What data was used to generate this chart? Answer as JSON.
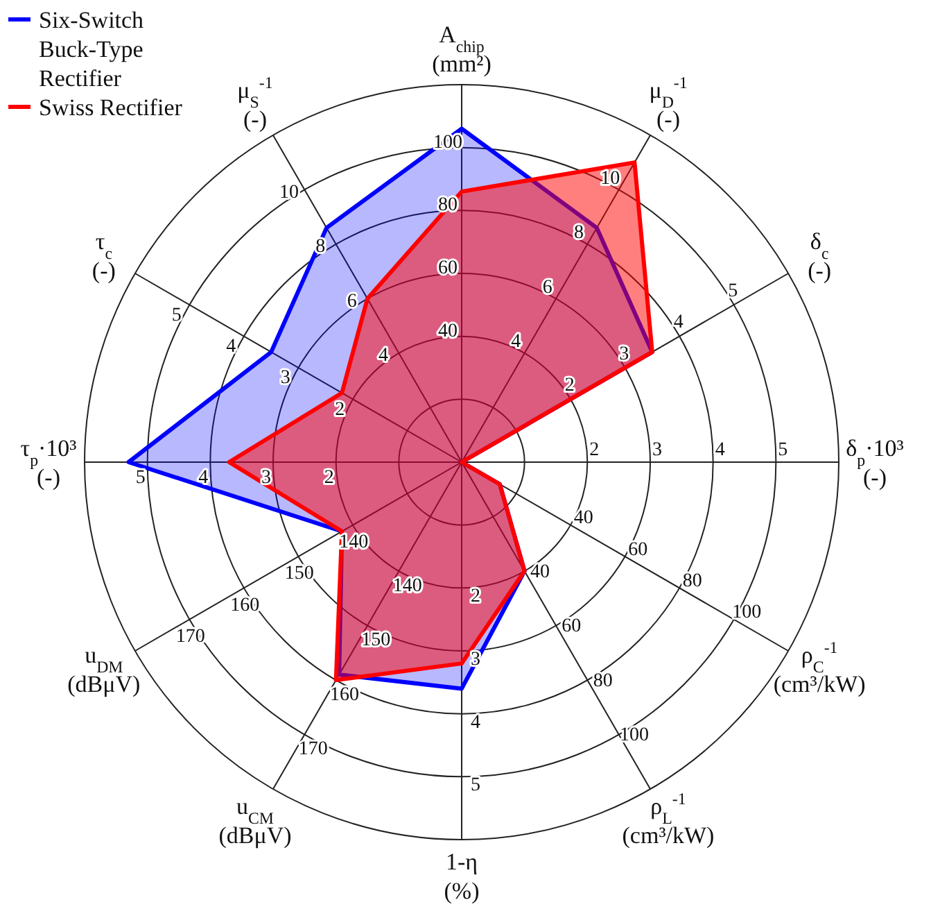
{
  "chart_data": {
    "type": "radar",
    "categories": [
      "A$_{chip}$\n(mm²)",
      "μ$_{D}$$^{-1}$\n(-)",
      "δ$_{c}$\n(-)",
      "δ$_{p}$·10³\n(-)",
      "ρ$_{C}$$^{-1}$\n(cm³/kW)",
      "ρ$_{L}$$^{-1}$\n(cm³/kW)",
      "1-η\n(%)",
      "u$_{CM}$\n(dBμV)",
      "u$_{DM}$\n(dBμV)",
      "τ$_{p}$·10³\n(-)",
      "τ$_{c}$\n(-)",
      "μ$_{S}$$^{-1}$\n(-)"
    ],
    "series": [
      {
        "name": "Six-Switch\nBuck-Type\nRectifier",
        "color": "#0000ff",
        "values": [
          106,
          86,
          70,
          0,
          14,
          40,
          72,
          78,
          44,
          106,
          70,
          86
        ]
      },
      {
        "name": "Swiss Rectifier",
        "color": "#ff0000",
        "values": [
          86,
          110,
          70,
          0,
          14,
          40,
          64,
          80,
          44,
          74,
          44,
          60
        ]
      }
    ],
    "ylim": [
      0,
      120
    ],
    "yticks": [
      40,
      60,
      80,
      100
    ],
    "legend": "top left",
    "annotations": [
      "4",
      "6",
      "8",
      "10",
      "2",
      "3",
      "4",
      "5",
      "2",
      "3",
      "4",
      "5",
      "40",
      "60",
      "80",
      "100",
      "40",
      "60",
      "80",
      "100",
      "2",
      "3",
      "4",
      "5",
      "140",
      "150",
      "160",
      "170",
      "140",
      "150",
      "160",
      "170",
      "2",
      "3",
      "4",
      "5",
      "2",
      "3",
      "4",
      "5",
      "4",
      "6",
      "8",
      "10"
    ]
  }
}
